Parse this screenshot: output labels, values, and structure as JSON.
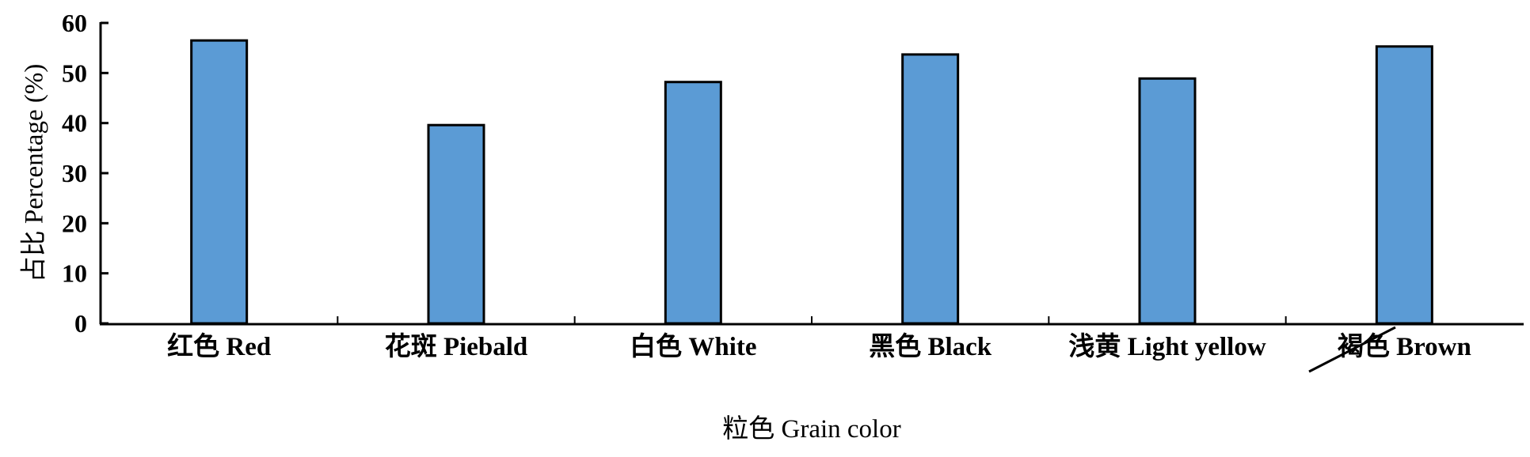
{
  "chart_data": {
    "type": "bar",
    "categories": [
      "红色 Red",
      "花斑 Piebald",
      "白色 White",
      "黑色 Black",
      "浅黄 Light yellow",
      "褐色 Brown"
    ],
    "values": [
      56.5,
      39.6,
      48.2,
      53.7,
      48.9,
      55.3
    ],
    "xlabel": "粒色 Grain color",
    "ylabel": "占比 Percentage (%)",
    "ylim": [
      0,
      60
    ],
    "yticks": [
      "0",
      "10",
      "20",
      "30",
      "40",
      "50",
      "60"
    ],
    "grid": false,
    "legend": "none",
    "bar_color": "#5B9BD5",
    "edge_color": "#000000"
  }
}
